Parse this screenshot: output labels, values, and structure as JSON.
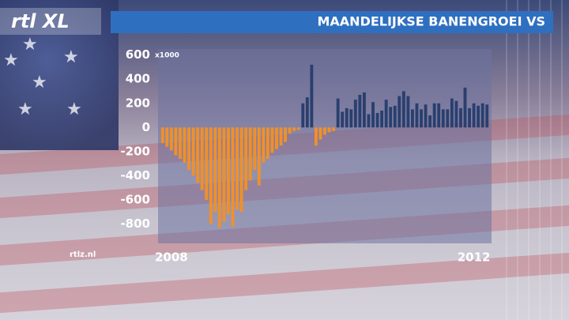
{
  "logo": "rtl XL",
  "watermark": "rtlz.nl",
  "chart_data": {
    "type": "bar",
    "title": "MAANDELIJKSE BANENGROEI VS",
    "unit_note": "x1000",
    "categories": [
      null,
      null,
      "2008",
      null,
      null,
      null,
      null,
      null,
      null,
      null,
      null,
      null,
      null,
      null,
      null,
      null,
      null,
      null,
      null,
      null,
      null,
      null,
      null,
      null,
      null,
      null,
      null,
      null,
      null,
      null,
      null,
      null,
      null,
      null,
      null,
      null,
      null,
      null,
      null,
      null,
      null,
      null,
      null,
      null,
      null,
      null,
      null,
      null,
      null,
      null,
      null,
      null,
      null,
      null,
      null,
      null,
      null,
      null,
      null,
      null,
      null,
      null,
      null,
      null,
      null,
      null,
      null,
      null,
      null,
      null,
      null,
      "2012",
      null,
      null,
      null
    ],
    "values": [
      -130,
      -160,
      -190,
      -230,
      -260,
      -290,
      -350,
      -400,
      -460,
      -520,
      -600,
      -800,
      -700,
      -830,
      -780,
      -720,
      -820,
      -680,
      -700,
      -520,
      -440,
      -350,
      -480,
      -290,
      -260,
      -210,
      -180,
      -150,
      -120,
      -50,
      -30,
      -20,
      200,
      250,
      520,
      -150,
      -100,
      -60,
      -40,
      -30,
      240,
      130,
      160,
      150,
      230,
      270,
      290,
      110,
      210,
      120,
      140,
      230,
      170,
      180,
      260,
      300,
      260,
      150,
      200,
      150,
      190,
      100,
      200,
      200,
      150,
      150,
      240,
      220,
      160,
      330,
      160,
      200,
      180,
      200,
      190
    ],
    "positive_color": "#2a3f6e",
    "negative_color": "#f0902a",
    "ylim": [
      -960,
      650
    ],
    "yticks": [
      600,
      400,
      200,
      0,
      -200,
      -400,
      -600,
      -800
    ]
  }
}
